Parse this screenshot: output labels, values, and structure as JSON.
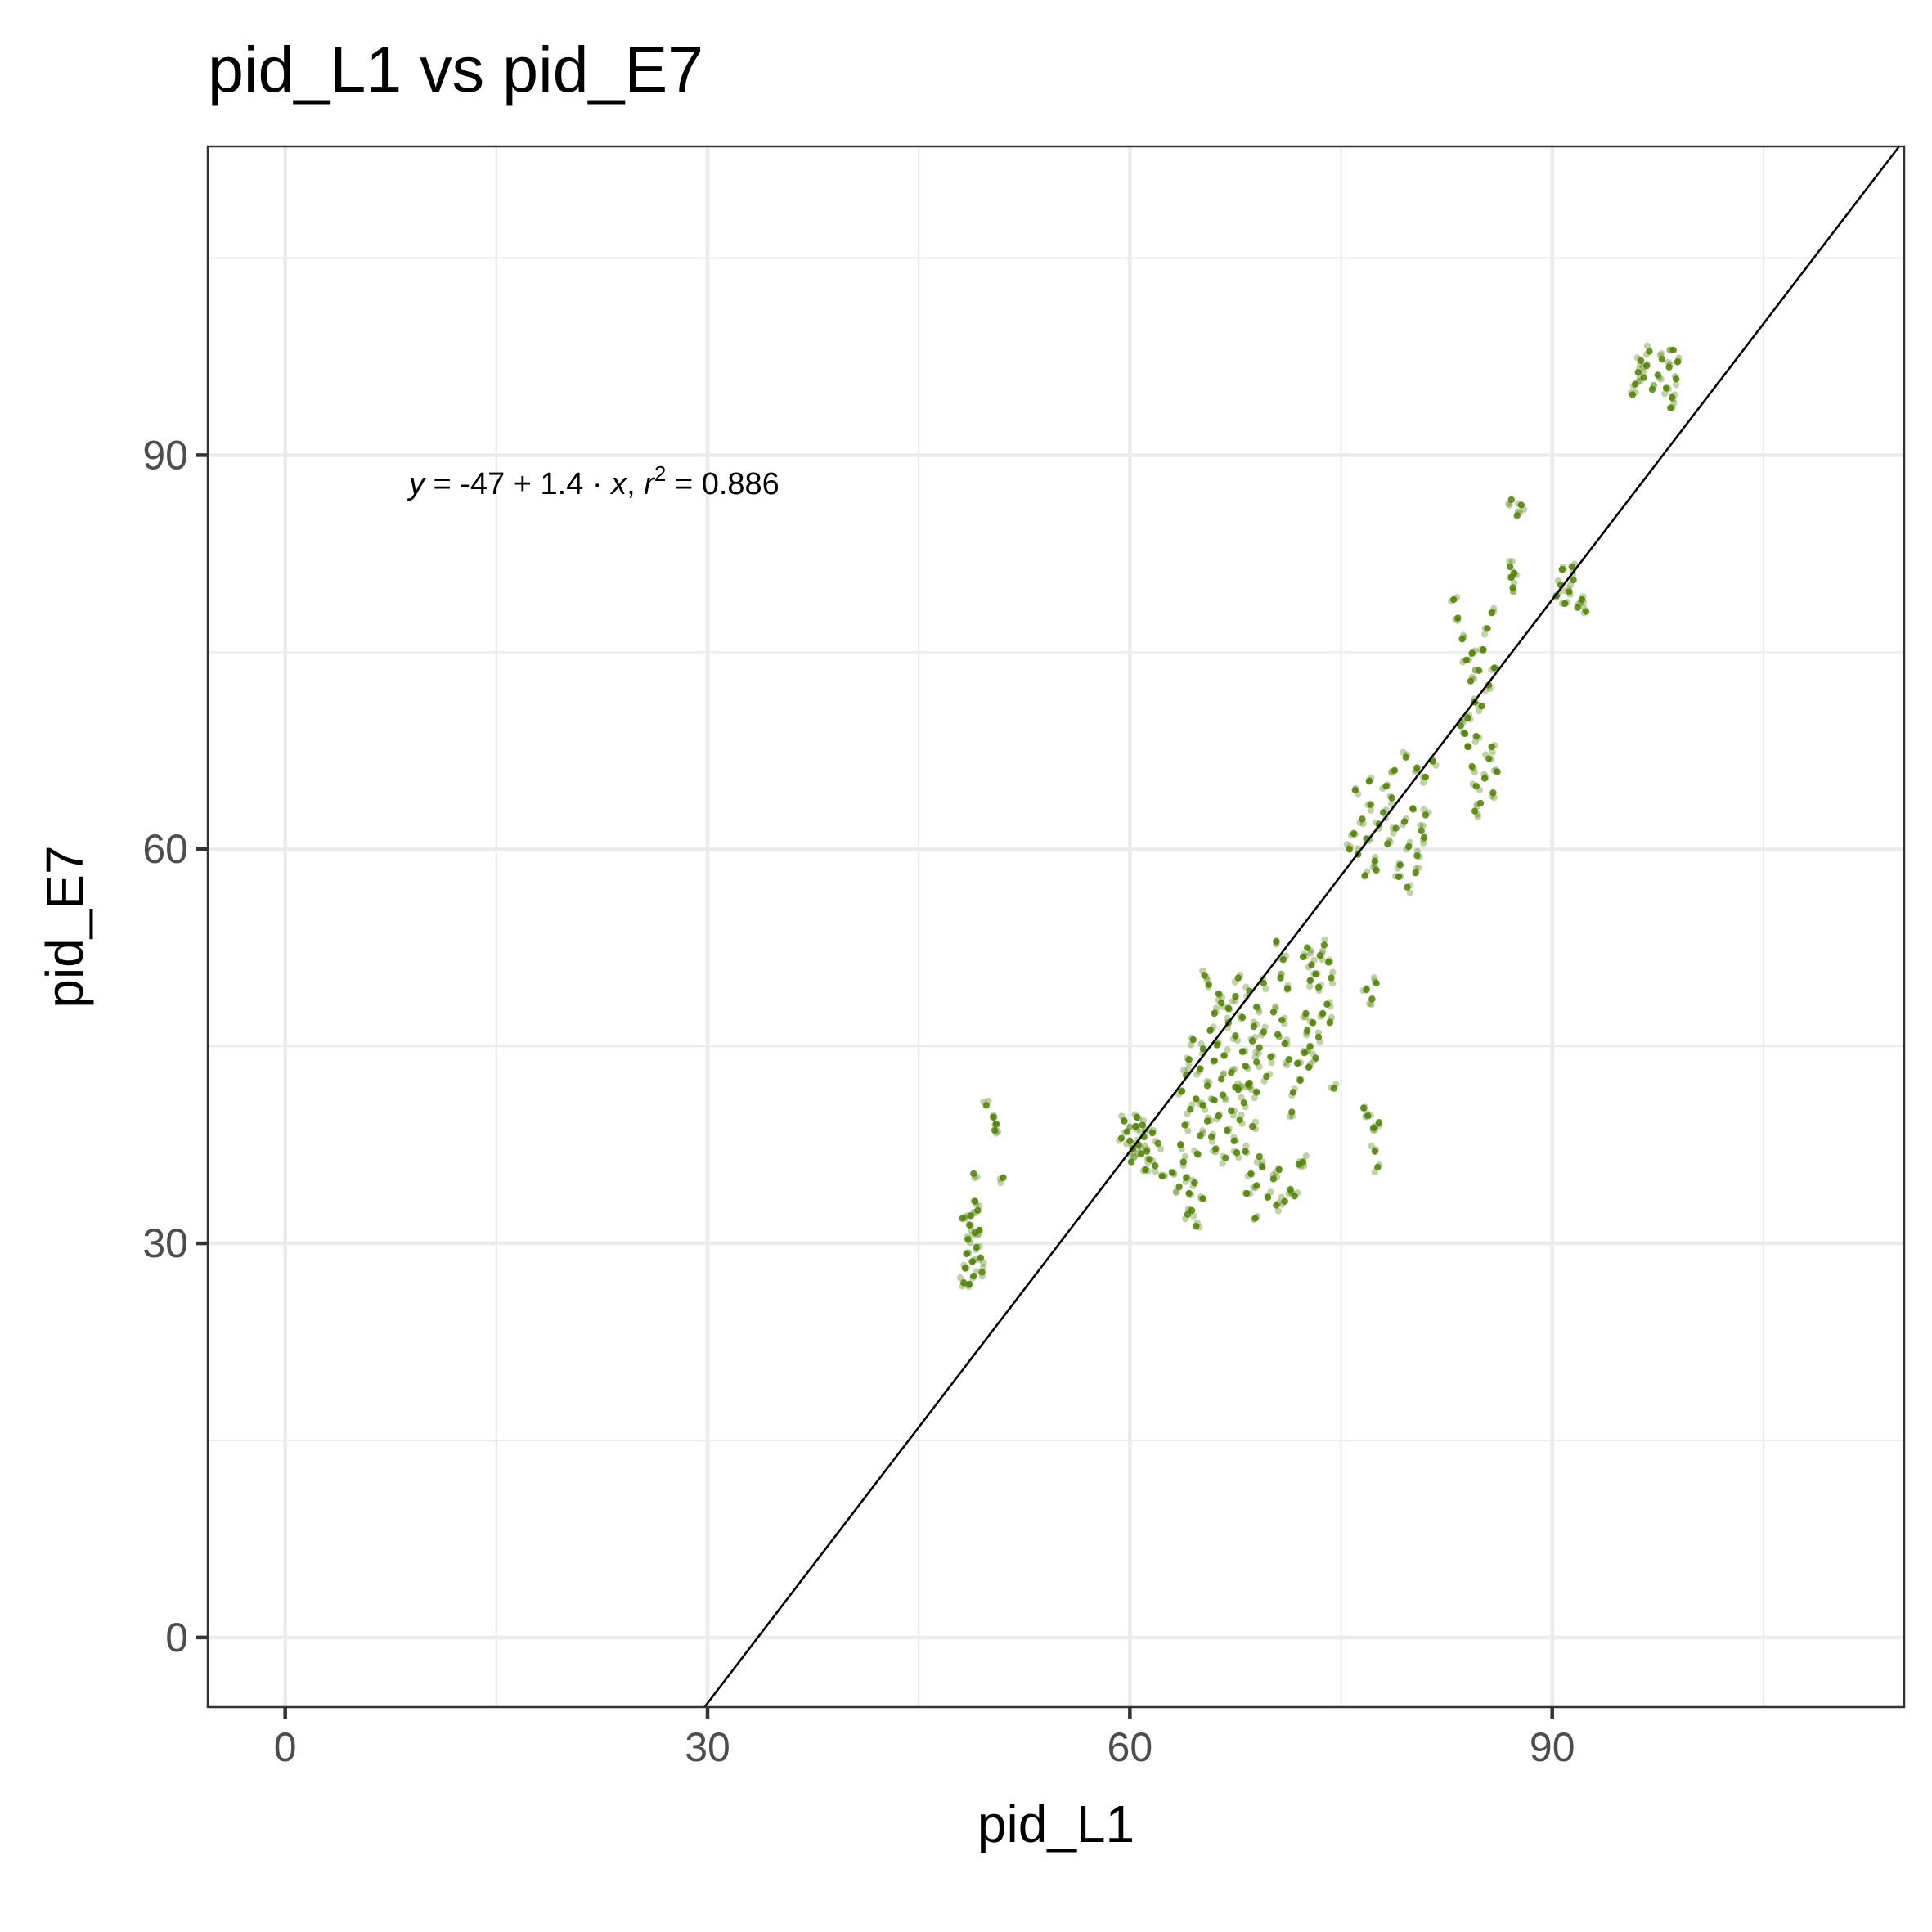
{
  "chart_data": {
    "type": "scatter",
    "title": "pid_L1 vs pid_E7",
    "xlabel": "pid_L1",
    "ylabel": "pid_E7",
    "xlim": [
      -5.5,
      115
    ],
    "ylim": [
      -5.3,
      113.5
    ],
    "x_ticks": [
      0,
      30,
      60,
      90
    ],
    "y_ticks": [
      0,
      30,
      60,
      90
    ],
    "x_tick_labels": [
      "0",
      "30",
      "60",
      "90"
    ],
    "y_tick_labels": [
      "0",
      "30",
      "60",
      "90"
    ],
    "grid": true,
    "legend": "none",
    "point_color": "#4d7f00",
    "line_color": "#000000",
    "regression": {
      "intercept": -47,
      "slope": 1.4,
      "r2": 0.886
    },
    "annotation": {
      "text": "y = -47 + 1.4 · x,  r² = 0.886",
      "y_label": "y",
      "eq_body": " = -47 + 1.4 · ",
      "x_label": "x",
      "sep": ",  ",
      "r_label": "r",
      "sup": "2",
      "r2_text": " = 0.886",
      "x": 8.8,
      "y": 89.8
    },
    "points": [
      [
        48.2,
        27.0
      ],
      [
        48.3,
        28.1
      ],
      [
        48.4,
        29.2
      ],
      [
        48.5,
        30.3
      ],
      [
        48.6,
        31.4
      ],
      [
        48.7,
        32.1
      ],
      [
        48.8,
        28.6
      ],
      [
        48.9,
        27.5
      ],
      [
        49.0,
        30.8
      ],
      [
        49.1,
        29.7
      ],
      [
        49.2,
        32.5
      ],
      [
        49.3,
        31.0
      ],
      [
        49.4,
        28.9
      ],
      [
        49.5,
        27.8
      ],
      [
        48.6,
        26.9
      ],
      [
        49.0,
        33.2
      ],
      [
        48.1,
        31.9
      ],
      [
        50.3,
        39.6
      ],
      [
        50.4,
        38.6
      ],
      [
        50.5,
        39.1
      ],
      [
        49.8,
        40.5
      ],
      [
        51.0,
        35.0
      ],
      [
        48.9,
        35.3
      ],
      [
        59.6,
        39.3
      ],
      [
        59.8,
        38.5
      ],
      [
        60.0,
        37.8
      ],
      [
        60.2,
        37.2
      ],
      [
        60.4,
        38.9
      ],
      [
        60.6,
        37.5
      ],
      [
        60.8,
        36.8
      ],
      [
        61.0,
        38.1
      ],
      [
        61.2,
        37.0
      ],
      [
        61.4,
        36.4
      ],
      [
        61.6,
        38.4
      ],
      [
        61.8,
        35.9
      ],
      [
        62.0,
        37.6
      ],
      [
        60.1,
        36.2
      ],
      [
        60.5,
        39.6
      ],
      [
        61.1,
        35.6
      ],
      [
        62.3,
        35.1
      ],
      [
        63.0,
        35.4
      ],
      [
        59.4,
        38.0
      ],
      [
        60.9,
        39.0
      ],
      [
        63.6,
        37.5
      ],
      [
        63.8,
        36.2
      ],
      [
        64.0,
        35.0
      ],
      [
        64.2,
        33.8
      ],
      [
        64.4,
        32.5
      ],
      [
        64.6,
        34.6
      ],
      [
        64.8,
        36.8
      ],
      [
        65.0,
        38.2
      ],
      [
        63.9,
        39.0
      ],
      [
        64.3,
        40.2
      ],
      [
        63.5,
        34.3
      ],
      [
        64.1,
        32.2
      ],
      [
        65.2,
        33.4
      ],
      [
        64.7,
        31.3
      ],
      [
        63.7,
        41.6
      ],
      [
        64.0,
        42.8
      ],
      [
        64.2,
        44.0
      ],
      [
        64.5,
        45.5
      ],
      [
        64.7,
        41.0
      ],
      [
        65.0,
        43.3
      ],
      [
        65.2,
        44.8
      ],
      [
        65.5,
        42.0
      ],
      [
        65.7,
        46.2
      ],
      [
        66.0,
        43.9
      ],
      [
        66.2,
        45.1
      ],
      [
        66.5,
        42.5
      ],
      [
        66.7,
        44.3
      ],
      [
        67.0,
        46.8
      ],
      [
        67.2,
        43.0
      ],
      [
        67.5,
        45.8
      ],
      [
        67.7,
        41.7
      ],
      [
        68.0,
        44.6
      ],
      [
        68.2,
        43.5
      ],
      [
        68.5,
        42.2
      ],
      [
        68.7,
        45.4
      ],
      [
        69.0,
        43.8
      ],
      [
        69.2,
        44.9
      ],
      [
        69.5,
        46.1
      ],
      [
        69.7,
        42.7
      ],
      [
        70.0,
        44.2
      ],
      [
        65.2,
        40.5
      ],
      [
        65.5,
        39.3
      ],
      [
        65.8,
        38.1
      ],
      [
        66.0,
        40.9
      ],
      [
        66.3,
        39.7
      ],
      [
        66.6,
        41.3
      ],
      [
        66.9,
        38.6
      ],
      [
        67.2,
        40.1
      ],
      [
        67.5,
        41.9
      ],
      [
        67.8,
        39.4
      ],
      [
        68.1,
        40.7
      ],
      [
        68.4,
        42.1
      ],
      [
        68.7,
        38.9
      ],
      [
        69.0,
        41.5
      ],
      [
        66.1,
        37.2
      ],
      [
        66.8,
        36.5
      ],
      [
        67.4,
        37.8
      ],
      [
        68.2,
        37.0
      ],
      [
        66.0,
        47.5
      ],
      [
        66.5,
        48.3
      ],
      [
        67.0,
        47.9
      ],
      [
        67.5,
        48.8
      ],
      [
        68.0,
        47.2
      ],
      [
        68.5,
        49.2
      ],
      [
        69.0,
        48.0
      ],
      [
        69.5,
        49.8
      ],
      [
        66.3,
        49.0
      ],
      [
        67.7,
        50.2
      ],
      [
        65.3,
        50.4
      ],
      [
        65.6,
        49.7
      ],
      [
        68.8,
        46.5
      ],
      [
        70.2,
        47.6
      ],
      [
        70.5,
        45.9
      ],
      [
        70.8,
        47.0
      ],
      [
        71.0,
        45.2
      ],
      [
        71.3,
        44.0
      ],
      [
        70.7,
        50.2
      ],
      [
        70.9,
        51.6
      ],
      [
        71.2,
        49.4
      ],
      [
        70.4,
        53.0
      ],
      [
        71.6,
        41.5
      ],
      [
        71.9,
        43.7
      ],
      [
        72.1,
        42.4
      ],
      [
        71.5,
        40.0
      ],
      [
        72.4,
        44.5
      ],
      [
        72.6,
        46.2
      ],
      [
        72.8,
        45.0
      ],
      [
        73.0,
        46.8
      ],
      [
        73.2,
        44.1
      ],
      [
        72.5,
        47.5
      ],
      [
        72.7,
        43.4
      ],
      [
        73.4,
        45.7
      ],
      [
        72.3,
        51.8
      ],
      [
        72.6,
        52.5
      ],
      [
        72.9,
        51.2
      ],
      [
        73.2,
        50.5
      ],
      [
        73.5,
        51.9
      ],
      [
        73.8,
        52.7
      ],
      [
        74.1,
        51.4
      ],
      [
        74.3,
        50.2
      ],
      [
        73.4,
        49.5
      ],
      [
        72.8,
        50.0
      ],
      [
        74.0,
        48.2
      ],
      [
        74.2,
        46.8
      ],
      [
        73.7,
        47.5
      ],
      [
        74.5,
        41.8
      ],
      [
        68.6,
        35.3
      ],
      [
        69.0,
        34.4
      ],
      [
        69.4,
        35.8
      ],
      [
        69.8,
        33.5
      ],
      [
        70.2,
        34.9
      ],
      [
        70.6,
        35.6
      ],
      [
        71.0,
        33.2
      ],
      [
        71.4,
        34.1
      ],
      [
        72.0,
        36.0
      ],
      [
        71.7,
        33.6
      ],
      [
        69.2,
        36.6
      ],
      [
        68.3,
        33.8
      ],
      [
        70.4,
        32.9
      ],
      [
        67.6,
        36.9
      ],
      [
        68.9,
        31.9
      ],
      [
        72.3,
        36.2
      ],
      [
        75.6,
        60.0
      ],
      [
        75.9,
        61.2
      ],
      [
        76.2,
        59.6
      ],
      [
        76.5,
        62.3
      ],
      [
        76.8,
        60.8
      ],
      [
        77.1,
        63.4
      ],
      [
        77.4,
        59.1
      ],
      [
        77.7,
        61.9
      ],
      [
        78.0,
        62.8
      ],
      [
        78.3,
        60.4
      ],
      [
        78.6,
        63.9
      ],
      [
        78.9,
        61.6
      ],
      [
        79.2,
        58.8
      ],
      [
        79.5,
        62.1
      ],
      [
        79.8,
        60.2
      ],
      [
        80.1,
        63.1
      ],
      [
        80.4,
        59.5
      ],
      [
        80.7,
        61.4
      ],
      [
        81.0,
        62.6
      ],
      [
        76.0,
        64.5
      ],
      [
        77.0,
        65.2
      ],
      [
        78.2,
        64.8
      ],
      [
        79.1,
        57.9
      ],
      [
        79.7,
        57.1
      ],
      [
        80.3,
        58.2
      ],
      [
        77.5,
        58.4
      ],
      [
        78.8,
        66.0
      ],
      [
        80.9,
        60.9
      ],
      [
        76.7,
        58.0
      ],
      [
        76.8,
        49.3
      ],
      [
        77.2,
        48.6
      ],
      [
        77.5,
        49.8
      ],
      [
        76.9,
        39.7
      ],
      [
        77.3,
        38.8
      ],
      [
        77.7,
        39.2
      ],
      [
        77.4,
        37.0
      ],
      [
        77.6,
        35.8
      ],
      [
        76.6,
        40.3
      ],
      [
        80.4,
        66.2
      ],
      [
        81.0,
        65.5
      ],
      [
        81.5,
        66.7
      ],
      [
        79.6,
        67.0
      ],
      [
        83.0,
        79.0
      ],
      [
        83.3,
        77.6
      ],
      [
        83.6,
        76.0
      ],
      [
        83.9,
        74.4
      ],
      [
        84.2,
        72.8
      ],
      [
        84.5,
        71.2
      ],
      [
        84.8,
        73.6
      ],
      [
        85.1,
        75.2
      ],
      [
        85.4,
        76.8
      ],
      [
        85.7,
        78.0
      ],
      [
        84.0,
        70.0
      ],
      [
        84.6,
        68.6
      ],
      [
        85.0,
        70.9
      ],
      [
        85.5,
        72.5
      ],
      [
        83.5,
        69.4
      ],
      [
        84.3,
        74.9
      ],
      [
        85.9,
        73.8
      ],
      [
        84.0,
        67.8
      ],
      [
        84.3,
        66.3
      ],
      [
        84.6,
        64.8
      ],
      [
        84.9,
        63.5
      ],
      [
        85.2,
        65.4
      ],
      [
        85.5,
        66.9
      ],
      [
        85.8,
        64.3
      ],
      [
        86.1,
        65.9
      ],
      [
        84.5,
        62.9
      ],
      [
        85.7,
        67.8
      ],
      [
        83.8,
        68.8
      ],
      [
        87.0,
        81.5
      ],
      [
        87.1,
        80.7
      ],
      [
        87.2,
        79.9
      ],
      [
        87.3,
        81.0
      ],
      [
        87.1,
        86.6
      ],
      [
        87.5,
        85.4
      ],
      [
        87.8,
        86.2
      ],
      [
        90.3,
        79.3
      ],
      [
        90.6,
        80.1
      ],
      [
        90.9,
        78.7
      ],
      [
        91.2,
        79.6
      ],
      [
        91.5,
        80.5
      ],
      [
        91.8,
        78.4
      ],
      [
        92.1,
        79.0
      ],
      [
        90.7,
        81.3
      ],
      [
        91.4,
        81.5
      ],
      [
        92.4,
        78.1
      ],
      [
        95.9,
        95.4
      ],
      [
        96.1,
        96.3
      ],
      [
        96.3,
        97.2
      ],
      [
        96.5,
        95.9
      ],
      [
        96.7,
        96.8
      ],
      [
        96.9,
        97.9
      ],
      [
        97.5,
        96.1
      ],
      [
        97.8,
        97.3
      ],
      [
        98.1,
        95.1
      ],
      [
        98.3,
        96.7
      ],
      [
        98.5,
        94.4
      ],
      [
        98.6,
        98.0
      ],
      [
        98.8,
        95.8
      ],
      [
        98.4,
        93.6
      ],
      [
        98.9,
        97.1
      ],
      [
        95.7,
        94.6
      ],
      [
        97.1,
        95.0
      ]
    ]
  }
}
